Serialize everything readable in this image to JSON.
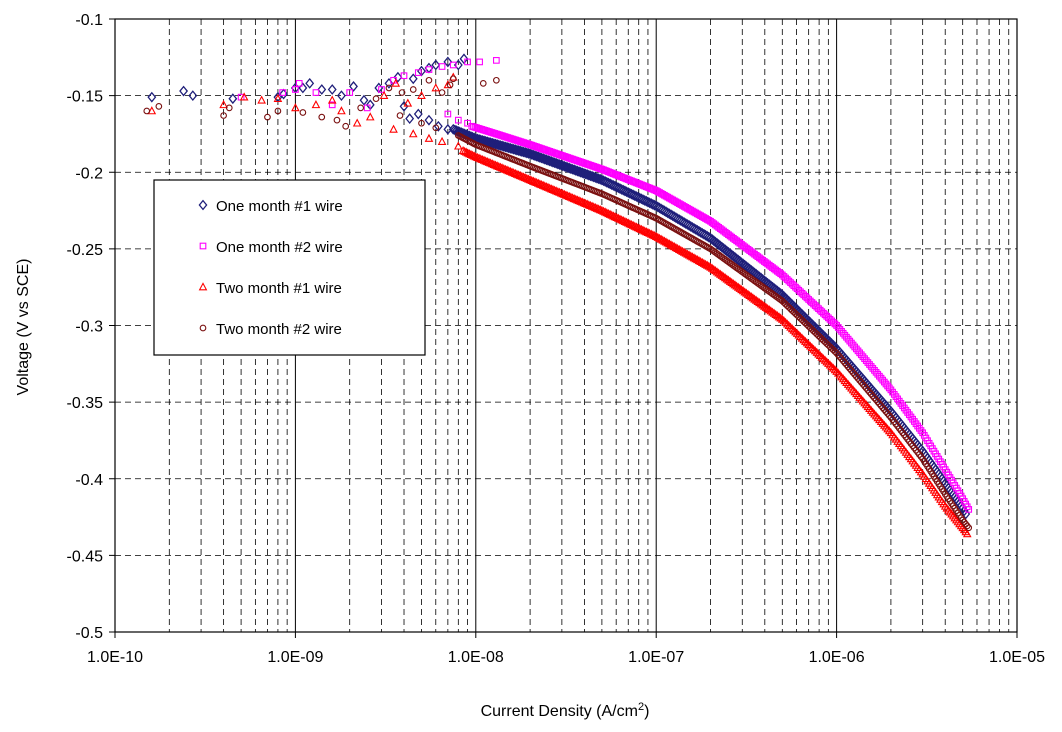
{
  "chart_data": {
    "type": "scatter",
    "title": "",
    "xlabel": "Current Density (A/cm",
    "xlabel_sup": "2",
    "xlabel_tail": ")",
    "ylabel": "Voltage (V vs SCE)",
    "x_scale": "log",
    "xlim": [
      1e-10,
      1e-05
    ],
    "ylim": [
      -0.5,
      -0.1
    ],
    "x_ticks": [
      1e-10,
      1e-09,
      1e-08,
      1e-07,
      1e-06,
      1e-05
    ],
    "x_tick_labels": [
      "1.0E-10",
      "1.0E-09",
      "1.0E-08",
      "1.0E-07",
      "1.0E-06",
      "1.0E-05"
    ],
    "y_ticks": [
      -0.1,
      -0.15,
      -0.2,
      -0.25,
      -0.3,
      -0.35,
      -0.4,
      -0.45,
      -0.5
    ],
    "y_tick_labels": [
      "-0.1",
      "-0.15",
      "-0.2",
      "-0.25",
      "-0.3",
      "-0.35",
      "-0.4",
      "-0.45",
      "-0.5"
    ],
    "grid": "dashed major and minor",
    "legend_position": "upper-left inside plot",
    "series": [
      {
        "name": "One month #1 wire",
        "marker": "diamond",
        "color": "#1f1f7a",
        "points": [
          [
            1.6e-10,
            -0.151
          ],
          [
            2.4e-10,
            -0.147
          ],
          [
            2.7e-10,
            -0.15
          ],
          [
            4.5e-10,
            -0.152
          ],
          [
            8e-10,
            -0.151
          ],
          [
            8.6e-10,
            -0.149
          ],
          [
            1e-09,
            -0.145
          ],
          [
            1.1e-09,
            -0.145
          ],
          [
            1.2e-09,
            -0.142
          ],
          [
            1.4e-09,
            -0.146
          ],
          [
            1.6e-09,
            -0.146
          ],
          [
            1.8e-09,
            -0.15
          ],
          [
            2.1e-09,
            -0.144
          ],
          [
            2.4e-09,
            -0.153
          ],
          [
            2.6e-09,
            -0.156
          ],
          [
            2.9e-09,
            -0.145
          ],
          [
            3.3e-09,
            -0.142
          ],
          [
            3.7e-09,
            -0.138
          ],
          [
            4e-09,
            -0.157
          ],
          [
            4.5e-09,
            -0.139
          ],
          [
            5e-09,
            -0.134
          ],
          [
            5.5e-09,
            -0.132
          ],
          [
            6e-09,
            -0.13
          ],
          [
            7e-09,
            -0.128
          ],
          [
            8e-09,
            -0.13
          ],
          [
            8.6e-09,
            -0.126
          ],
          [
            4.3e-09,
            -0.165
          ],
          [
            4.8e-09,
            -0.162
          ],
          [
            5.5e-09,
            -0.166
          ],
          [
            6.2e-09,
            -0.17
          ],
          [
            7e-09,
            -0.172
          ]
        ],
        "curve": [
          [
            7.5e-09,
            -0.172
          ],
          [
            1e-08,
            -0.178
          ],
          [
            2e-08,
            -0.188
          ],
          [
            5e-08,
            -0.205
          ],
          [
            1e-07,
            -0.222
          ],
          [
            2e-07,
            -0.243
          ],
          [
            5e-07,
            -0.28
          ],
          [
            1e-06,
            -0.315
          ],
          [
            2e-06,
            -0.356
          ],
          [
            3e-06,
            -0.382
          ],
          [
            4e-06,
            -0.403
          ],
          [
            5e-06,
            -0.419
          ],
          [
            5.2e-06,
            -0.423
          ]
        ]
      },
      {
        "name": "One month #2 wire",
        "marker": "square",
        "color": "#ff00ff",
        "points": [
          [
            5e-10,
            -0.151
          ],
          [
            8.5e-10,
            -0.148
          ],
          [
            1e-09,
            -0.146
          ],
          [
            1.05e-09,
            -0.142
          ],
          [
            1.3e-09,
            -0.148
          ],
          [
            1.6e-09,
            -0.156
          ],
          [
            2e-09,
            -0.148
          ],
          [
            2.5e-09,
            -0.158
          ],
          [
            3e-09,
            -0.146
          ],
          [
            3.5e-09,
            -0.14
          ],
          [
            4e-09,
            -0.137
          ],
          [
            4.8e-09,
            -0.135
          ],
          [
            5.5e-09,
            -0.133
          ],
          [
            6.5e-09,
            -0.131
          ],
          [
            7.5e-09,
            -0.13
          ],
          [
            9e-09,
            -0.128
          ],
          [
            1.05e-08,
            -0.128
          ],
          [
            1.3e-08,
            -0.127
          ],
          [
            7e-09,
            -0.162
          ],
          [
            8e-09,
            -0.166
          ],
          [
            9e-09,
            -0.168
          ]
        ],
        "curve": [
          [
            9.5e-09,
            -0.17
          ],
          [
            1.3e-08,
            -0.175
          ],
          [
            2e-08,
            -0.182
          ],
          [
            5e-08,
            -0.198
          ],
          [
            1e-07,
            -0.212
          ],
          [
            2e-07,
            -0.232
          ],
          [
            5e-07,
            -0.267
          ],
          [
            1e-06,
            -0.3
          ],
          [
            2e-06,
            -0.342
          ],
          [
            3e-06,
            -0.37
          ],
          [
            4e-06,
            -0.394
          ],
          [
            5e-06,
            -0.413
          ],
          [
            5.4e-06,
            -0.42
          ]
        ]
      },
      {
        "name": "Two month #1 wire",
        "marker": "triangle",
        "color": "#ff0000",
        "points": [
          [
            1.6e-10,
            -0.16
          ],
          [
            4e-10,
            -0.156
          ],
          [
            5.2e-10,
            -0.151
          ],
          [
            6.5e-10,
            -0.153
          ],
          [
            8e-10,
            -0.152
          ],
          [
            1e-09,
            -0.158
          ],
          [
            1.3e-09,
            -0.156
          ],
          [
            1.6e-09,
            -0.153
          ],
          [
            1.8e-09,
            -0.16
          ],
          [
            2.2e-09,
            -0.168
          ],
          [
            2.6e-09,
            -0.164
          ],
          [
            3.1e-09,
            -0.15
          ],
          [
            3.6e-09,
            -0.142
          ],
          [
            4.2e-09,
            -0.155
          ],
          [
            5e-09,
            -0.15
          ],
          [
            6e-09,
            -0.145
          ],
          [
            7e-09,
            -0.143
          ],
          [
            7.5e-09,
            -0.138
          ],
          [
            3.5e-09,
            -0.172
          ],
          [
            4.5e-09,
            -0.175
          ],
          [
            5.5e-09,
            -0.178
          ],
          [
            6.5e-09,
            -0.18
          ],
          [
            8e-09,
            -0.183
          ]
        ],
        "curve": [
          [
            8.5e-09,
            -0.186
          ],
          [
            1e-08,
            -0.19
          ],
          [
            2e-08,
            -0.205
          ],
          [
            5e-08,
            -0.225
          ],
          [
            1e-07,
            -0.242
          ],
          [
            2e-07,
            -0.262
          ],
          [
            5e-07,
            -0.296
          ],
          [
            1e-06,
            -0.33
          ],
          [
            2e-06,
            -0.37
          ],
          [
            3e-06,
            -0.397
          ],
          [
            4e-06,
            -0.418
          ],
          [
            5e-06,
            -0.432
          ],
          [
            5.3e-06,
            -0.436
          ]
        ]
      },
      {
        "name": "Two month #2 wire",
        "marker": "circle",
        "color": "#7a1010",
        "points": [
          [
            1.5e-10,
            -0.16
          ],
          [
            1.75e-10,
            -0.157
          ],
          [
            4e-10,
            -0.163
          ],
          [
            4.3e-10,
            -0.158
          ],
          [
            7e-10,
            -0.164
          ],
          [
            8e-10,
            -0.16
          ],
          [
            1.1e-09,
            -0.161
          ],
          [
            1.4e-09,
            -0.164
          ],
          [
            1.7e-09,
            -0.166
          ],
          [
            1.9e-09,
            -0.17
          ],
          [
            2.3e-09,
            -0.158
          ],
          [
            2.8e-09,
            -0.152
          ],
          [
            3.3e-09,
            -0.145
          ],
          [
            3.9e-09,
            -0.148
          ],
          [
            4.5e-09,
            -0.146
          ],
          [
            5.5e-09,
            -0.14
          ],
          [
            6.5e-09,
            -0.148
          ],
          [
            7.2e-09,
            -0.143
          ],
          [
            7.5e-09,
            -0.139
          ],
          [
            1.1e-08,
            -0.142
          ],
          [
            1.3e-08,
            -0.14
          ],
          [
            3.8e-09,
            -0.163
          ],
          [
            5e-09,
            -0.168
          ],
          [
            6e-09,
            -0.171
          ]
        ],
        "curve": [
          [
            8e-09,
            -0.176
          ],
          [
            1e-08,
            -0.182
          ],
          [
            2e-08,
            -0.196
          ],
          [
            5e-08,
            -0.214
          ],
          [
            1e-07,
            -0.23
          ],
          [
            2e-07,
            -0.25
          ],
          [
            5e-07,
            -0.284
          ],
          [
            1e-06,
            -0.318
          ],
          [
            2e-06,
            -0.36
          ],
          [
            3e-06,
            -0.387
          ],
          [
            4e-06,
            -0.41
          ],
          [
            5e-06,
            -0.427
          ],
          [
            5.4e-06,
            -0.432
          ]
        ]
      }
    ]
  }
}
